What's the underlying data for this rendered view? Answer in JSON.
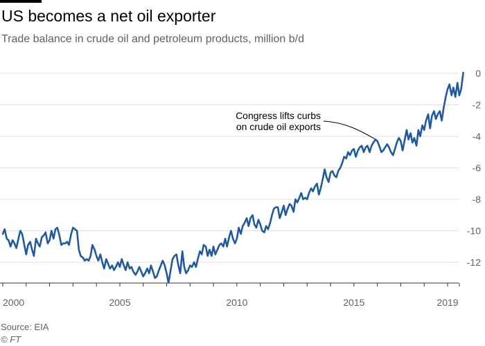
{
  "title": "US becomes a net oil exporter",
  "subtitle": "Trade balance in crude oil and petroleum products, million b/d",
  "source": "Source: EIA",
  "copyright": "© FT",
  "colors": {
    "line": "#1f5aa0",
    "grid": "#e3ded9",
    "text": "#66605c",
    "accent_bar": "#000000"
  },
  "chart_data": {
    "type": "line",
    "title": "US becomes a net oil exporter",
    "subtitle": "Trade balance in crude oil and petroleum products, million b/d",
    "xlabel": "",
    "ylabel": "",
    "xlim": [
      2000,
      2019.3
    ],
    "ylim": [
      -13.5,
      0.5
    ],
    "x_ticks": [
      2000,
      2005,
      2010,
      2015,
      2019
    ],
    "x_tick_labels": [
      "2000",
      "2005",
      "2010",
      "2015",
      "2019"
    ],
    "y_ticks": [
      0,
      -2,
      -4,
      -6,
      -8,
      -10,
      -12
    ],
    "y_tick_labels": [
      "0",
      "-2",
      "-4",
      "-6",
      "-8",
      "-10",
      "-12"
    ],
    "grid": true,
    "axis_side": "right",
    "annotation": {
      "lines": [
        "Congress lifts curbs",
        "on crude oil exports"
      ],
      "x": 2015.95,
      "y": -4.3
    },
    "series": [
      {
        "points": [
          [
            2000.0,
            -10.2
          ],
          [
            2000.08,
            -9.9
          ],
          [
            2000.17,
            -10.5
          ],
          [
            2000.25,
            -10.6
          ],
          [
            2000.33,
            -11.0
          ],
          [
            2000.42,
            -10.6
          ],
          [
            2000.5,
            -10.8
          ],
          [
            2000.58,
            -11.1
          ],
          [
            2000.67,
            -10.5
          ],
          [
            2000.75,
            -10.0
          ],
          [
            2000.83,
            -10.2
          ],
          [
            2000.92,
            -10.9
          ],
          [
            2001.0,
            -11.5
          ],
          [
            2001.08,
            -10.9
          ],
          [
            2001.17,
            -10.7
          ],
          [
            2001.25,
            -11.2
          ],
          [
            2001.33,
            -11.6
          ],
          [
            2001.42,
            -10.5
          ],
          [
            2001.5,
            -10.8
          ],
          [
            2001.58,
            -11.0
          ],
          [
            2001.67,
            -10.4
          ],
          [
            2001.75,
            -10.3
          ],
          [
            2001.83,
            -10.1
          ],
          [
            2001.92,
            -10.8
          ],
          [
            2002.0,
            -10.6
          ],
          [
            2002.08,
            -10.0
          ],
          [
            2002.17,
            -10.5
          ],
          [
            2002.25,
            -9.9
          ],
          [
            2002.33,
            -9.8
          ],
          [
            2002.42,
            -10.3
          ],
          [
            2002.5,
            -10.9
          ],
          [
            2002.58,
            -10.8
          ],
          [
            2002.67,
            -10.8
          ],
          [
            2002.75,
            -10.7
          ],
          [
            2002.83,
            -10.9
          ],
          [
            2002.92,
            -10.2
          ],
          [
            2003.0,
            -9.8
          ],
          [
            2003.08,
            -9.9
          ],
          [
            2003.17,
            -10.0
          ],
          [
            2003.25,
            -11.2
          ],
          [
            2003.33,
            -11.6
          ],
          [
            2003.42,
            -11.7
          ],
          [
            2003.5,
            -11.9
          ],
          [
            2003.58,
            -11.8
          ],
          [
            2003.67,
            -11.9
          ],
          [
            2003.75,
            -11.6
          ],
          [
            2003.83,
            -10.9
          ],
          [
            2003.92,
            -11.2
          ],
          [
            2004.0,
            -11.6
          ],
          [
            2004.08,
            -11.9
          ],
          [
            2004.17,
            -11.5
          ],
          [
            2004.25,
            -12.0
          ],
          [
            2004.33,
            -12.4
          ],
          [
            2004.42,
            -11.8
          ],
          [
            2004.5,
            -12.1
          ],
          [
            2004.58,
            -12.4
          ],
          [
            2004.67,
            -12.2
          ],
          [
            2004.75,
            -12.5
          ],
          [
            2004.83,
            -12.3
          ],
          [
            2004.92,
            -12.0
          ],
          [
            2005.0,
            -12.3
          ],
          [
            2005.08,
            -11.8
          ],
          [
            2005.17,
            -12.2
          ],
          [
            2005.25,
            -12.5
          ],
          [
            2005.33,
            -12.0
          ],
          [
            2005.42,
            -12.4
          ],
          [
            2005.5,
            -12.3
          ],
          [
            2005.58,
            -12.6
          ],
          [
            2005.67,
            -12.8
          ],
          [
            2005.75,
            -12.6
          ],
          [
            2005.83,
            -12.3
          ],
          [
            2005.92,
            -12.6
          ],
          [
            2006.0,
            -12.9
          ],
          [
            2006.08,
            -12.7
          ],
          [
            2006.17,
            -12.4
          ],
          [
            2006.25,
            -12.7
          ],
          [
            2006.33,
            -12.2
          ],
          [
            2006.42,
            -12.6
          ],
          [
            2006.5,
            -13.0
          ],
          [
            2006.58,
            -12.9
          ],
          [
            2006.67,
            -12.5
          ],
          [
            2006.75,
            -12.2
          ],
          [
            2006.83,
            -11.9
          ],
          [
            2006.92,
            -12.2
          ],
          [
            2007.0,
            -12.7
          ],
          [
            2007.08,
            -13.3
          ],
          [
            2007.17,
            -12.5
          ],
          [
            2007.25,
            -11.8
          ],
          [
            2007.33,
            -11.6
          ],
          [
            2007.42,
            -11.5
          ],
          [
            2007.5,
            -12.2
          ],
          [
            2007.58,
            -12.7
          ],
          [
            2007.67,
            -11.3
          ],
          [
            2007.75,
            -12.3
          ],
          [
            2007.83,
            -12.7
          ],
          [
            2007.92,
            -12.5
          ],
          [
            2008.0,
            -12.2
          ],
          [
            2008.08,
            -12.3
          ],
          [
            2008.17,
            -12.0
          ],
          [
            2008.25,
            -12.3
          ],
          [
            2008.33,
            -11.8
          ],
          [
            2008.42,
            -11.3
          ],
          [
            2008.5,
            -11.5
          ],
          [
            2008.58,
            -10.9
          ],
          [
            2008.67,
            -11.0
          ],
          [
            2008.75,
            -11.6
          ],
          [
            2008.83,
            -11.2
          ],
          [
            2008.92,
            -11.6
          ],
          [
            2009.0,
            -11.0
          ],
          [
            2009.08,
            -11.5
          ],
          [
            2009.17,
            -11.2
          ],
          [
            2009.25,
            -10.9
          ],
          [
            2009.33,
            -10.8
          ],
          [
            2009.42,
            -11.0
          ],
          [
            2009.5,
            -10.5
          ],
          [
            2009.58,
            -11.0
          ],
          [
            2009.67,
            -10.4
          ],
          [
            2009.75,
            -10.0
          ],
          [
            2009.83,
            -10.5
          ],
          [
            2009.92,
            -10.8
          ],
          [
            2010.0,
            -10.5
          ],
          [
            2010.08,
            -9.8
          ],
          [
            2010.17,
            -10.2
          ],
          [
            2010.25,
            -9.7
          ],
          [
            2010.33,
            -9.5
          ],
          [
            2010.42,
            -9.2
          ],
          [
            2010.5,
            -9.7
          ],
          [
            2010.58,
            -9.2
          ],
          [
            2010.67,
            -9.0
          ],
          [
            2010.75,
            -9.6
          ],
          [
            2010.83,
            -9.8
          ],
          [
            2010.92,
            -9.3
          ],
          [
            2011.0,
            -9.6
          ],
          [
            2011.08,
            -10.0
          ],
          [
            2011.17,
            -10.1
          ],
          [
            2011.25,
            -9.7
          ],
          [
            2011.33,
            -9.9
          ],
          [
            2011.42,
            -9.5
          ],
          [
            2011.5,
            -9.0
          ],
          [
            2011.58,
            -8.6
          ],
          [
            2011.67,
            -8.5
          ],
          [
            2011.75,
            -8.5
          ],
          [
            2011.83,
            -9.2
          ],
          [
            2011.92,
            -8.8
          ],
          [
            2012.0,
            -8.4
          ],
          [
            2012.08,
            -9.0
          ],
          [
            2012.17,
            -8.6
          ],
          [
            2012.25,
            -8.3
          ],
          [
            2012.33,
            -8.4
          ],
          [
            2012.42,
            -8.8
          ],
          [
            2012.5,
            -8.0
          ],
          [
            2012.58,
            -8.2
          ],
          [
            2012.67,
            -7.9
          ],
          [
            2012.75,
            -7.6
          ],
          [
            2012.83,
            -8.0
          ],
          [
            2012.92,
            -7.9
          ],
          [
            2013.0,
            -8.0
          ],
          [
            2013.08,
            -7.6
          ],
          [
            2013.17,
            -7.3
          ],
          [
            2013.25,
            -7.5
          ],
          [
            2013.33,
            -7.2
          ],
          [
            2013.42,
            -7.0
          ],
          [
            2013.5,
            -7.7
          ],
          [
            2013.58,
            -7.3
          ],
          [
            2013.67,
            -6.7
          ],
          [
            2013.75,
            -6.1
          ],
          [
            2013.83,
            -6.6
          ],
          [
            2013.92,
            -6.9
          ],
          [
            2014.0,
            -6.3
          ],
          [
            2014.08,
            -6.2
          ],
          [
            2014.17,
            -6.5
          ],
          [
            2014.25,
            -6.6
          ],
          [
            2014.33,
            -6.2
          ],
          [
            2014.42,
            -6.0
          ],
          [
            2014.5,
            -5.7
          ],
          [
            2014.58,
            -5.3
          ],
          [
            2014.67,
            -5.4
          ],
          [
            2014.75,
            -5.0
          ],
          [
            2014.83,
            -5.2
          ],
          [
            2014.92,
            -4.9
          ],
          [
            2015.0,
            -4.8
          ],
          [
            2015.08,
            -5.3
          ],
          [
            2015.17,
            -4.9
          ],
          [
            2015.25,
            -4.7
          ],
          [
            2015.33,
            -4.6
          ],
          [
            2015.42,
            -5.0
          ],
          [
            2015.5,
            -4.7
          ],
          [
            2015.58,
            -4.6
          ],
          [
            2015.67,
            -5.0
          ],
          [
            2015.75,
            -4.6
          ],
          [
            2015.83,
            -4.4
          ],
          [
            2015.92,
            -4.2
          ],
          [
            2016.0,
            -4.3
          ],
          [
            2016.08,
            -4.6
          ],
          [
            2016.17,
            -5.0
          ],
          [
            2016.25,
            -4.9
          ],
          [
            2016.33,
            -4.7
          ],
          [
            2016.42,
            -4.5
          ],
          [
            2016.5,
            -4.7
          ],
          [
            2016.58,
            -5.0
          ],
          [
            2016.67,
            -5.2
          ],
          [
            2016.75,
            -4.8
          ],
          [
            2016.83,
            -4.4
          ],
          [
            2016.92,
            -4.1
          ],
          [
            2017.0,
            -4.3
          ],
          [
            2017.08,
            -4.9
          ],
          [
            2017.17,
            -4.2
          ],
          [
            2017.25,
            -3.6
          ],
          [
            2017.33,
            -4.2
          ],
          [
            2017.42,
            -3.8
          ],
          [
            2017.5,
            -4.4
          ],
          [
            2017.58,
            -4.1
          ],
          [
            2017.67,
            -4.6
          ],
          [
            2017.75,
            -3.6
          ],
          [
            2017.83,
            -4.0
          ],
          [
            2017.92,
            -3.3
          ],
          [
            2018.0,
            -3.6
          ],
          [
            2018.08,
            -3.0
          ],
          [
            2018.17,
            -2.6
          ],
          [
            2018.25,
            -3.5
          ],
          [
            2018.33,
            -2.7
          ],
          [
            2018.42,
            -2.4
          ],
          [
            2018.5,
            -2.9
          ],
          [
            2018.58,
            -2.6
          ],
          [
            2018.67,
            -2.4
          ],
          [
            2018.75,
            -3.0
          ],
          [
            2018.83,
            -2.2
          ],
          [
            2018.92,
            -1.5
          ],
          [
            2019.0,
            -1.0
          ],
          [
            2019.08,
            -0.7
          ],
          [
            2019.17,
            -1.4
          ],
          [
            2019.25,
            -0.9
          ],
          [
            2019.33,
            -1.5
          ],
          [
            2019.42,
            -0.6
          ],
          [
            2019.5,
            -1.4
          ],
          [
            2019.58,
            -1.0
          ],
          [
            2019.67,
            0.05
          ]
        ]
      }
    ]
  }
}
